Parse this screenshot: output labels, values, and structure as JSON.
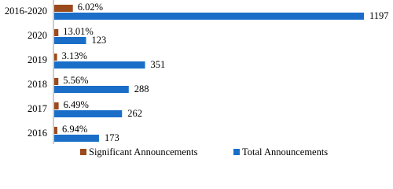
{
  "chart_data": {
    "type": "bar",
    "orientation": "horizontal",
    "categories": [
      "2016-2020",
      "2020",
      "2019",
      "2018",
      "2017",
      "2016"
    ],
    "series": [
      {
        "name": "Significant Announcements",
        "color": "#9a4a1c",
        "values": [
          6.02,
          13.01,
          3.13,
          5.56,
          6.49,
          6.94
        ],
        "value_labels": [
          "6.02%",
          "13.01%",
          "3.13%",
          "5.56%",
          "6.49%",
          "6.94%"
        ]
      },
      {
        "name": "Total Announcements",
        "color": "#1a6ec8",
        "values": [
          1197,
          123,
          351,
          288,
          262,
          173
        ]
      }
    ],
    "legend": "bottom"
  }
}
